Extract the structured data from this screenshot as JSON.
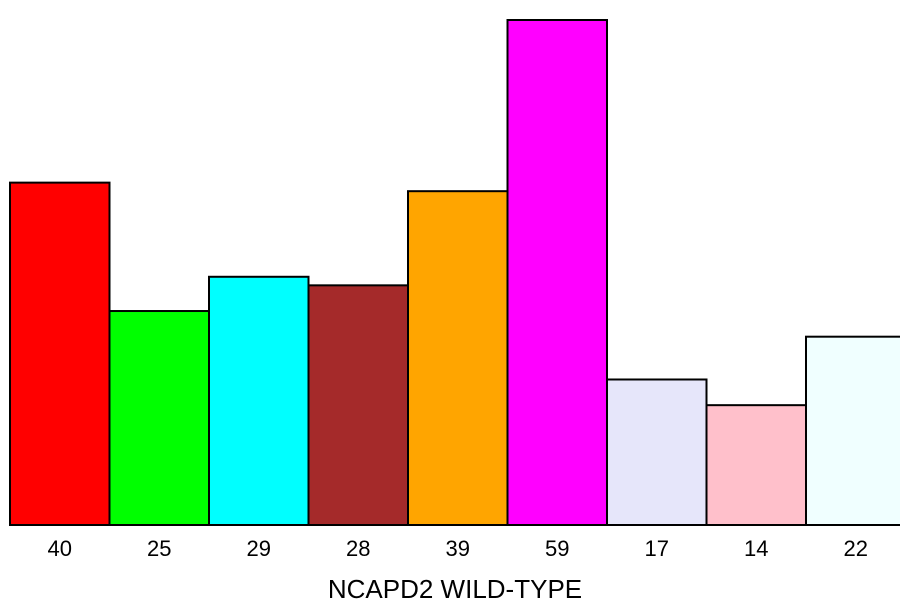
{
  "chart_data": {
    "type": "bar",
    "title": "",
    "xlabel": "NCAPD2 WILD-TYPE",
    "ylabel": "",
    "categories": [
      "40",
      "25",
      "29",
      "28",
      "39",
      "59",
      "17",
      "14",
      "22"
    ],
    "values": [
      40,
      25,
      29,
      28,
      39,
      59,
      17,
      14,
      22
    ],
    "colors": [
      "#ff0000",
      "#00ff00",
      "#00ffff",
      "#a52a2a",
      "#ffa500",
      "#ff00ff",
      "#e6e6fa",
      "#ffc0cb",
      "#f0ffff"
    ],
    "ylim": [
      0,
      59
    ],
    "grid": false,
    "legend": "none"
  }
}
